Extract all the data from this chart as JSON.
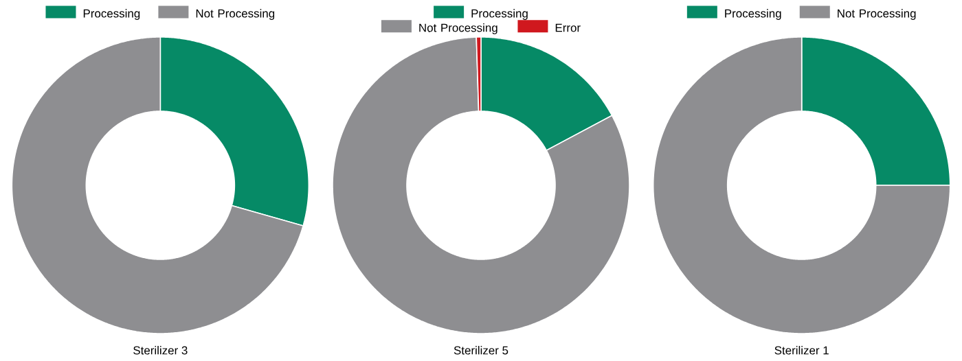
{
  "chart_data": [
    {
      "type": "donut",
      "title": "Sterilizer 3",
      "categories": [
        "Processing",
        "Not Processing"
      ],
      "values": [
        29.4,
        70.6
      ],
      "colors": [
        "#068a66",
        "#8e8e91"
      ],
      "legend": "top"
    },
    {
      "type": "donut",
      "title": "Sterilizer 5",
      "categories": [
        "Processing",
        "Not Processing",
        "Error"
      ],
      "values": [
        17.2,
        82.3,
        0.5
      ],
      "colors": [
        "#068a66",
        "#8e8e91",
        "#d0181e"
      ],
      "legend": "top"
    },
    {
      "type": "donut",
      "title": "Sterilizer 1",
      "categories": [
        "Processing",
        "Not Processing"
      ],
      "values": [
        25,
        75
      ],
      "colors": [
        "#068a66",
        "#8e8e91"
      ],
      "legend": "top"
    }
  ]
}
